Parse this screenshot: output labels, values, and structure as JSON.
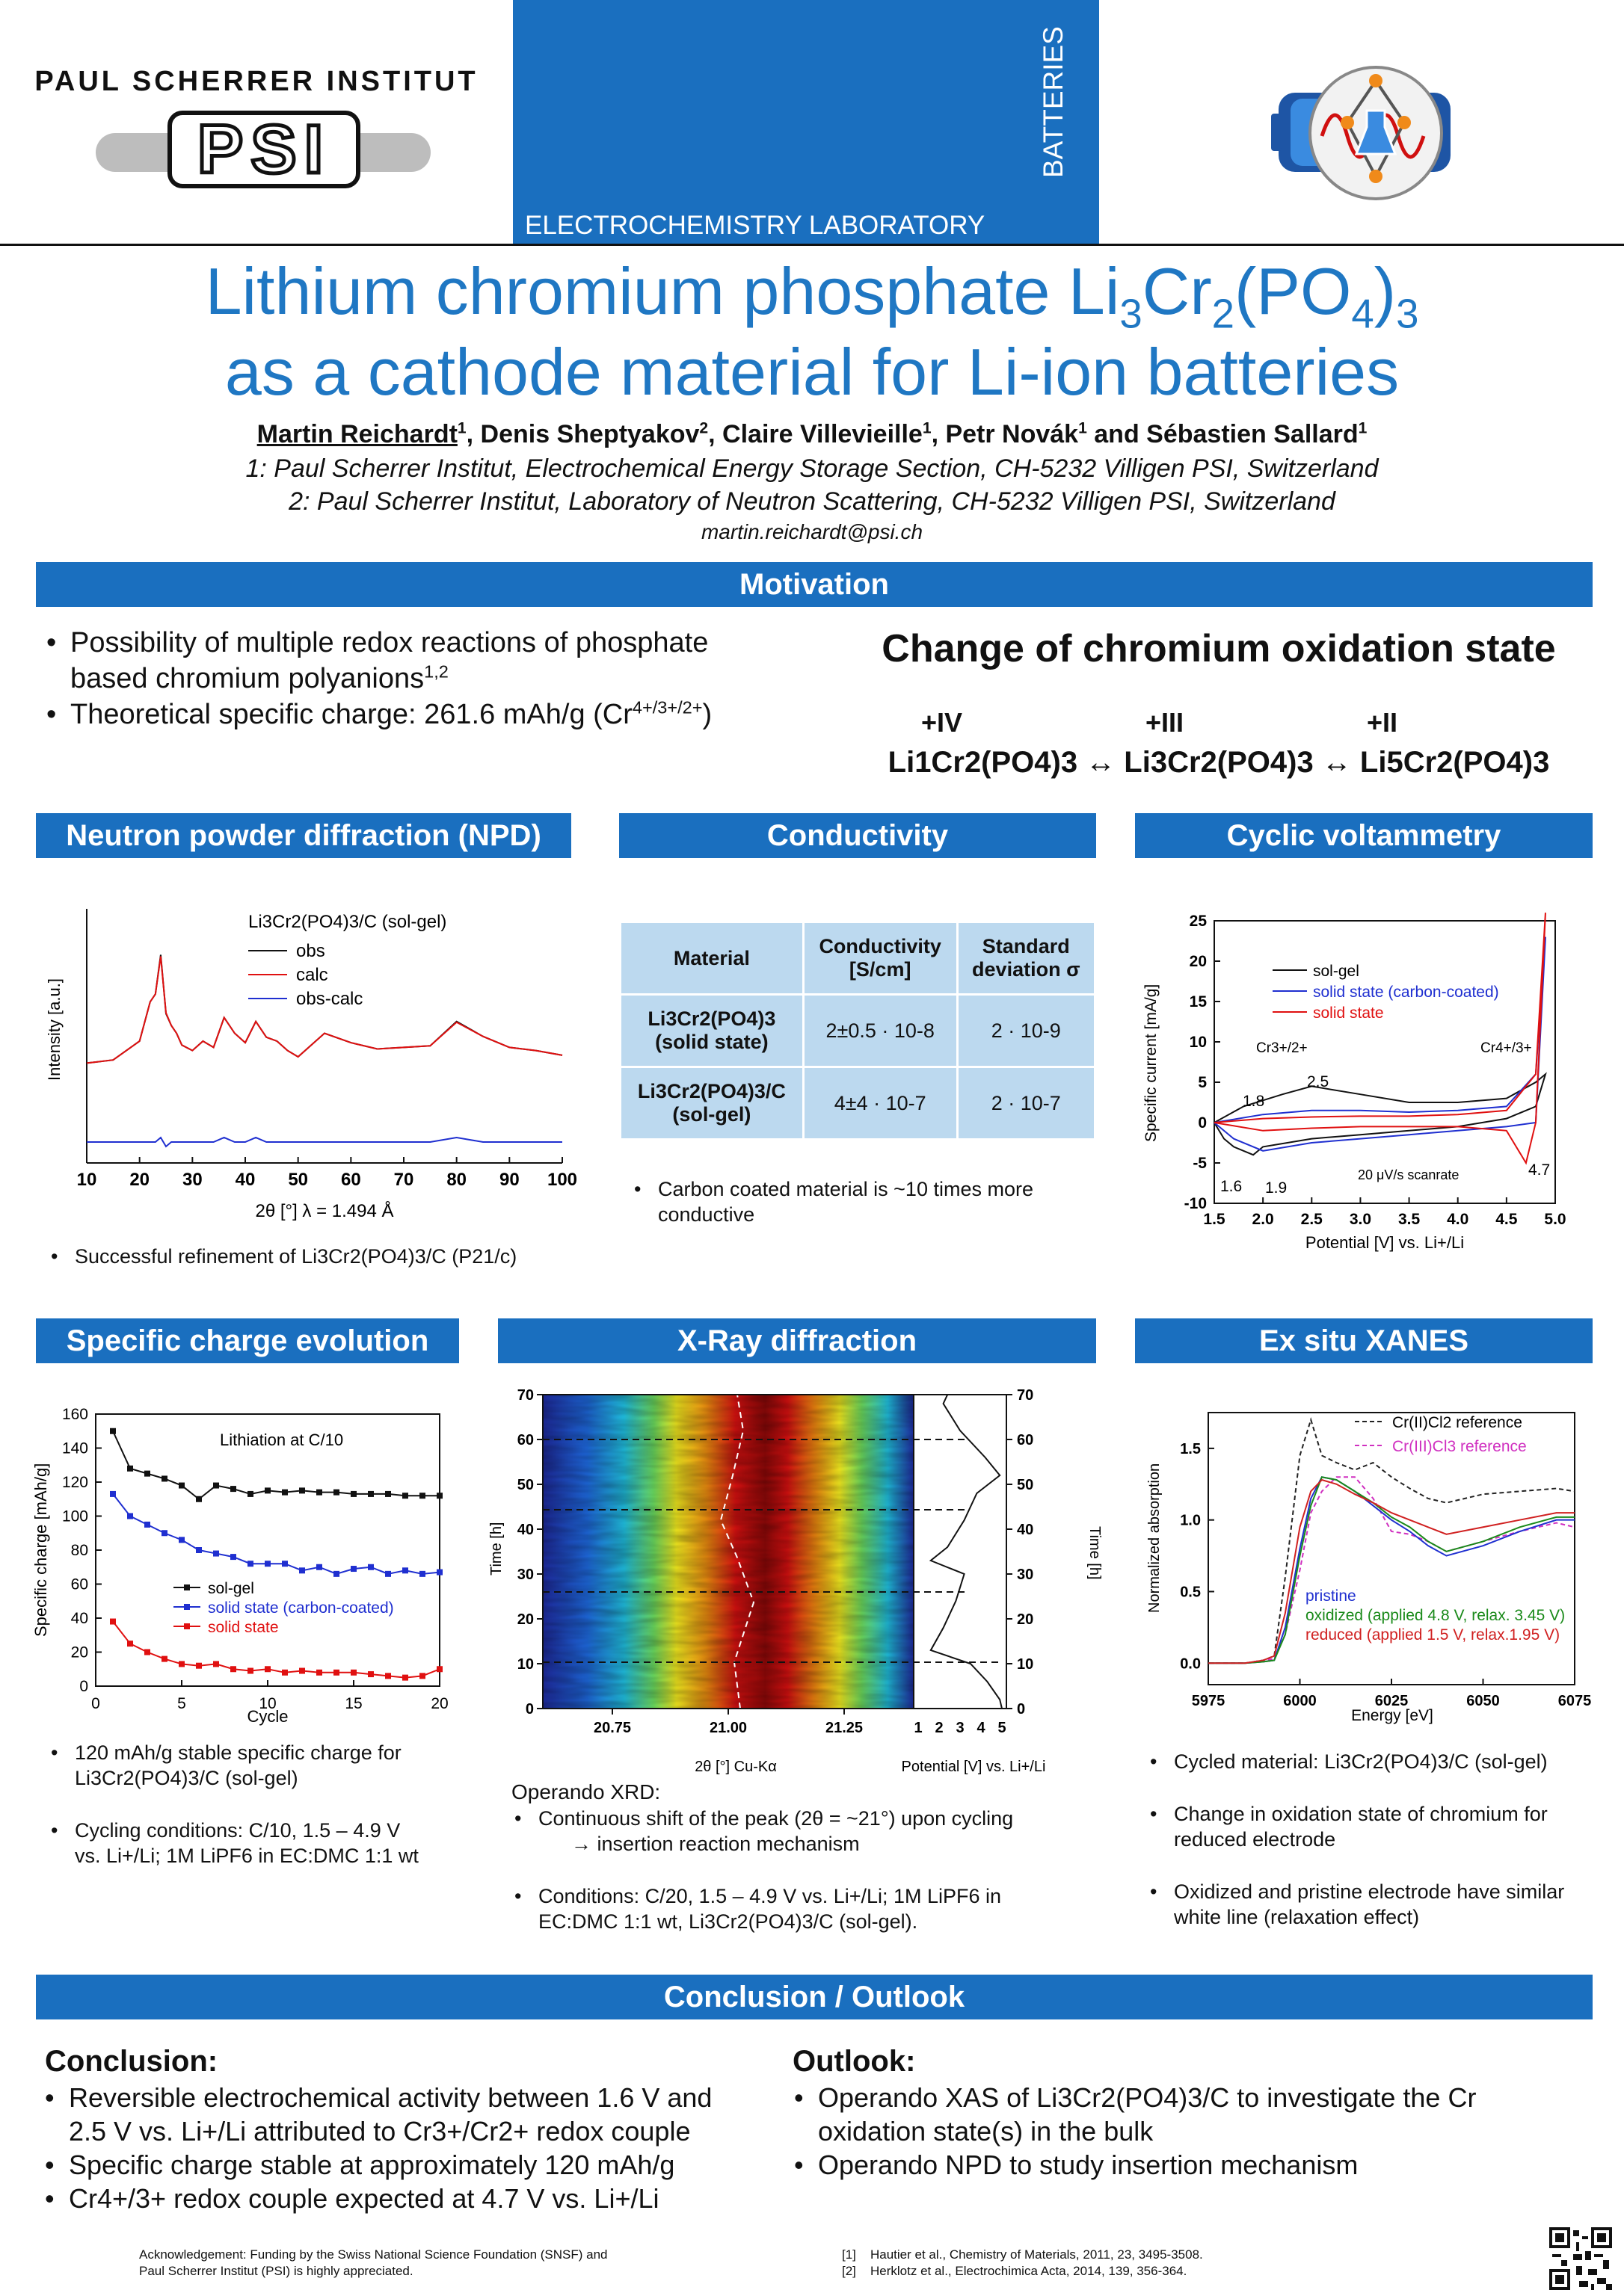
{
  "header": {
    "institute": "PAUL SCHERRER INSTITUT",
    "logo_text": "PSI",
    "lab": "ELECTROCHEMISTRY LABORATORY",
    "vertical": "BATTERIES",
    "colors": {
      "accent": "#1a6fbf",
      "title": "#1f77c3"
    }
  },
  "title": {
    "line1_pre": "Lithium chromium phosphate Li",
    "line1_s1": "3",
    "line1_cr": "Cr",
    "line1_s2": "2",
    "line1_po": "(PO",
    "line1_s3": "4",
    "line1_cl": ")",
    "line1_s4": "3",
    "line2": "as a cathode material for Li-ion batteries"
  },
  "authors": {
    "a1": "Martin Reichardt",
    "a1_sup": "1",
    "a2": ", Denis Sheptyakov",
    "a2_sup": "2",
    "a3": ", Claire Villevieille",
    "a3_sup": "1",
    "a4": ", Petr Novák",
    "a4_sup": "1",
    "a5": " and Sébastien Sallard",
    "a5_sup": "1",
    "aff1": "1: Paul Scherrer Institut, Electrochemical Energy Storage Section, CH-5232 Villigen PSI, Switzerland",
    "aff2": "2: Paul Scherrer Institut, Laboratory of Neutron Scattering, CH-5232 Villigen PSI, Switzerland",
    "email": "martin.reichardt@psi.ch"
  },
  "motivation": {
    "header": "Motivation",
    "b1a": "Possibility of multiple redox reactions of phosphate",
    "b1b": "based chromium polyanions",
    "b1_sup": "1,2",
    "b2": "Theoretical specific charge: 261.6 mAh/g (Cr",
    "b2_sup": "4+/3+/2+",
    "b2_end": ")",
    "ox_title": "Change of chromium oxidation state",
    "ox_labels": [
      "+IV",
      "+III",
      "+II"
    ],
    "ox_eq": "Li1Cr2(PO4)3 ↔ Li3Cr2(PO4)3 ↔ Li5Cr2(PO4)3"
  },
  "npd": {
    "header": "Neutron powder diffraction (NPD)",
    "legend_title": "Li3Cr2(PO4)3/C (sol-gel)",
    "legend": [
      "obs",
      "calc",
      "obs-calc"
    ],
    "ylabel": "Intensity [a.u.]",
    "xlabel": "2θ [°] λ = 1.494 Å",
    "ticks": [
      "10",
      "20",
      "30",
      "40",
      "50",
      "60",
      "70",
      "80",
      "90",
      "100"
    ],
    "bullet": "Successful refinement of Li3Cr2(PO4)3/C (P21/c)"
  },
  "conductivity": {
    "header": "Conductivity",
    "col1": "Material",
    "col2a": "Conductivity",
    "col2b": "[S/cm]",
    "col3a": "Standard",
    "col3b": "deviation σ",
    "row1a": "Li3Cr2(PO4)3",
    "row1b": "(solid state)",
    "row1_val": "2±0.5 · 10-8",
    "row1_sd": "2 · 10-9",
    "row2a": "Li3Cr2(PO4)3/C",
    "row2b": "(sol-gel)",
    "row2_val": "4±4 · 10-7",
    "row2_sd": "2 · 10-7",
    "bullet_a": "Carbon coated material is ~10 times more",
    "bullet_b": "conductive"
  },
  "cv": {
    "header": "Cyclic voltammetry",
    "legend": [
      "sol-gel",
      "solid state (carbon-coated)",
      "solid state"
    ],
    "ylabel": "Specific current [mA/g]",
    "xlabel": "Potential [V] vs. Li+/Li",
    "xticks": [
      "1.5",
      "2.0",
      "2.5",
      "3.0",
      "3.5",
      "4.0",
      "4.5",
      "5.0"
    ],
    "yticks": [
      "25",
      "20",
      "15",
      "10",
      "5",
      "0",
      "-5",
      "-10"
    ],
    "annotations": [
      "Cr3+/2+",
      "Cr4+/3+",
      "2.5",
      "1.8",
      "1.6",
      "1.9",
      "4.7",
      "20 μV/s scanrate"
    ]
  },
  "specific_charge": {
    "header": "Specific charge evolution",
    "ylabel": "Specific charge [mAh/g]",
    "xlabel": "Cycle",
    "label": "Lithiation at C/10",
    "legend": [
      "sol-gel",
      "solid state (carbon-coated)",
      "solid state"
    ],
    "xticks": [
      "0",
      "5",
      "10",
      "15",
      "20"
    ],
    "yticks": [
      "160",
      "140",
      "120",
      "100",
      "80",
      "60",
      "40",
      "20",
      "0"
    ],
    "b1a": "120 mAh/g stable specific charge for",
    "b1b": "Li3Cr2(PO4)3/C (sol-gel)",
    "b2a": "Cycling conditions: C/10, 1.5 – 4.9 V",
    "b2b": "vs. Li+/Li; 1M LiPF6 in EC:DMC 1:1 wt"
  },
  "xrd": {
    "header": "X-Ray diffraction",
    "ylabel": "Time [h]",
    "xlabel_left": "2θ [°] Cu-Kα",
    "xlabel_right": "Potential [V] vs. Li+/Li",
    "xticks": [
      "20.75",
      "21.00",
      "21.25"
    ],
    "pticks": [
      "1",
      "2",
      "3",
      "4",
      "5"
    ],
    "tticks": [
      "70",
      "60",
      "50",
      "40",
      "30",
      "20",
      "10",
      "0"
    ],
    "intro": "Operando XRD:",
    "b1a": "Continuous shift of the peak (2θ = ~21°) upon cycling",
    "b1b": "→ insertion reaction mechanism",
    "b2a": "Conditions: C/20, 1.5 – 4.9 V vs. Li+/Li; 1M LiPF6 in",
    "b2b": "EC:DMC 1:1 wt, Li3Cr2(PO4)3/C (sol-gel)."
  },
  "xanes": {
    "header": "Ex situ XANES",
    "ylabel": "Normalized absorption",
    "xlabel": "Energy [eV]",
    "xticks": [
      "5975",
      "6000",
      "6025",
      "6050",
      "6075"
    ],
    "yticks": [
      "1.5",
      "1.0",
      "0.5",
      "0.0"
    ],
    "ref1": "Cr(II)Cl2 reference",
    "ref2": "Cr(III)Cl3 reference",
    "leg1": "pristine",
    "leg2": "oxidized (applied 4.8 V, relax. 3.45 V)",
    "leg3": "reduced (applied 1.5 V, relax.1.95 V)",
    "b1": "Cycled material: Li3Cr2(PO4)3/C (sol-gel)",
    "b2a": "Change in oxidation state of chromium for",
    "b2b": "reduced electrode",
    "b3a": "Oxidized and pristine electrode have similar",
    "b3b": "white line (relaxation effect)"
  },
  "conclusion": {
    "header": "Conclusion / Outlook",
    "c_title": "Conclusion:",
    "c1a": "Reversible electrochemical activity between 1.6 V and",
    "c1b": "2.5 V vs. Li+/Li attributed to Cr3+/Cr2+ redox couple",
    "c2": "Specific charge stable at approximately 120 mAh/g",
    "c3": "Cr4+/3+ redox couple expected at 4.7 V vs. Li+/Li",
    "o_title": "Outlook:",
    "o1a": "Operando XAS of Li3Cr2(PO4)3/C to investigate the Cr",
    "o1b": "oxidation state(s) in the bulk",
    "o2": "Operando NPD to study insertion mechanism"
  },
  "footer": {
    "ack1": "Acknowledgement:  Funding by the Swiss National Science Foundation (SNSF) and",
    "ack2": "Paul Scherrer Institut (PSI) is highly appreciated.",
    "ref1_n": "[1]",
    "ref1": "Hautier et al., Chemistry of Materials, 2011, 23, 3495-3508.",
    "ref2_n": "[2]",
    "ref2": "Herklotz et al., Electrochimica Acta, 2014, 139, 356-364."
  },
  "chart_data": [
    {
      "type": "line",
      "title": "Specific charge evolution",
      "xlabel": "Cycle",
      "ylabel": "Specific charge [mAh/g]",
      "xlim": [
        0,
        20
      ],
      "ylim": [
        0,
        160
      ],
      "x": [
        1,
        2,
        3,
        4,
        5,
        6,
        7,
        8,
        9,
        10,
        11,
        12,
        13,
        14,
        15,
        16,
        17,
        18,
        19,
        20
      ],
      "series": [
        {
          "name": "sol-gel",
          "color": "#111111",
          "values": [
            150,
            128,
            125,
            122,
            118,
            110,
            118,
            116,
            113,
            115,
            114,
            115,
            114,
            114,
            113,
            113,
            113,
            112,
            112,
            112
          ]
        },
        {
          "name": "solid state (carbon-coated)",
          "color": "#1f2fd0",
          "values": [
            113,
            100,
            95,
            90,
            86,
            80,
            78,
            76,
            72,
            72,
            72,
            68,
            70,
            66,
            69,
            70,
            66,
            68,
            66,
            67
          ]
        },
        {
          "name": "solid state",
          "color": "#e01010",
          "values": [
            38,
            25,
            20,
            16,
            13,
            12,
            13,
            10,
            9,
            10,
            8,
            9,
            8,
            8,
            8,
            7,
            6,
            5,
            6,
            10
          ]
        }
      ]
    },
    {
      "type": "line",
      "title": "Neutron powder diffraction (NPD)",
      "xlabel": "2θ [°] λ = 1.494 Å",
      "ylabel": "Intensity [a.u.]",
      "xlim": [
        10,
        100
      ],
      "x": [
        10,
        15,
        20,
        22,
        23,
        24,
        25,
        26,
        27,
        28,
        30,
        32,
        34,
        36,
        38,
        40,
        42,
        44,
        46,
        48,
        50,
        55,
        60,
        65,
        70,
        75,
        80,
        85,
        90,
        95,
        100
      ],
      "series": [
        {
          "name": "obs",
          "color": "#111111",
          "values": [
            32,
            36,
            60,
            110,
            120,
            170,
            95,
            80,
            70,
            55,
            48,
            60,
            52,
            90,
            70,
            58,
            85,
            65,
            60,
            48,
            40,
            70,
            58,
            50,
            52,
            54,
            85,
            66,
            52,
            48,
            42
          ]
        },
        {
          "name": "calc",
          "color": "#e01010",
          "values": [
            32,
            36,
            60,
            110,
            120,
            168,
            96,
            80,
            70,
            55,
            48,
            60,
            52,
            90,
            70,
            58,
            85,
            65,
            60,
            48,
            40,
            70,
            58,
            50,
            52,
            54,
            84,
            66,
            52,
            48,
            42
          ]
        },
        {
          "name": "obs-calc",
          "color": "#1f2fd0",
          "values": [
            0,
            0,
            0,
            0,
            0,
            1,
            -1,
            0,
            0,
            0,
            0,
            0,
            0,
            1,
            0,
            0,
            1,
            0,
            0,
            0,
            0,
            0,
            0,
            0,
            0,
            0,
            1,
            0,
            0,
            0,
            0
          ]
        }
      ]
    },
    {
      "type": "line",
      "title": "Cyclic voltammetry",
      "xlabel": "Potential [V] vs. Li+/Li",
      "ylabel": "Specific current [mA/g]",
      "xlim": [
        1.5,
        5.0
      ],
      "ylim": [
        -10,
        25
      ],
      "series": [
        {
          "name": "sol-gel",
          "color": "#111111",
          "x": [
            1.5,
            1.8,
            2.2,
            2.5,
            3.0,
            3.5,
            4.0,
            4.5,
            4.8,
            4.9,
            4.8,
            4.5,
            4.0,
            3.5,
            3.0,
            2.5,
            2.0,
            1.9,
            1.7,
            1.6,
            1.5
          ],
          "values": [
            0,
            2,
            3.5,
            4.5,
            3.5,
            2.5,
            2.5,
            3,
            5,
            6,
            2,
            0.5,
            -0.5,
            -1,
            -1.5,
            -2,
            -3,
            -4,
            -3,
            -2,
            0
          ]
        },
        {
          "name": "solid state (carbon-coated)",
          "color": "#1f2fd0",
          "x": [
            1.5,
            2.0,
            2.5,
            3.0,
            3.5,
            4.0,
            4.5,
            4.8,
            4.9,
            4.8,
            4.5,
            4.0,
            3.5,
            3.0,
            2.5,
            2.0,
            1.7,
            1.5
          ],
          "values": [
            0,
            1,
            1.5,
            1.5,
            1.3,
            1.5,
            2,
            6,
            23,
            0,
            -0.5,
            -1,
            -1.5,
            -2,
            -2.5,
            -3.5,
            -2,
            0
          ]
        },
        {
          "name": "solid state",
          "color": "#e01010",
          "x": [
            1.5,
            2.0,
            2.5,
            3.0,
            3.5,
            4.0,
            4.5,
            4.8,
            4.9,
            4.8,
            4.7,
            4.5,
            4.0,
            3.5,
            3.0,
            2.5,
            2.0,
            1.5
          ],
          "values": [
            0,
            0.5,
            0.7,
            0.8,
            0.8,
            1,
            1.5,
            6,
            26,
            0,
            -5,
            -1,
            -0.5,
            -0.5,
            -0.5,
            -0.7,
            -1,
            0
          ]
        }
      ]
    },
    {
      "type": "line",
      "title": "Ex situ XANES",
      "xlabel": "Energy [eV]",
      "ylabel": "Normalized absorption",
      "xlim": [
        5975,
        6075
      ],
      "ylim": [
        -0.15,
        1.75
      ],
      "x": [
        5975,
        5985,
        5990,
        5993,
        5996,
        6000,
        6003,
        6006,
        6010,
        6015,
        6020,
        6025,
        6030,
        6035,
        6040,
        6050,
        6060,
        6070,
        6075
      ],
      "series": [
        {
          "name": "Cr(II)Cl2 reference",
          "color": "#222222",
          "values": [
            0,
            0,
            0.02,
            0.05,
            0.6,
            1.45,
            1.7,
            1.45,
            1.4,
            1.35,
            1.4,
            1.3,
            1.22,
            1.15,
            1.12,
            1.18,
            1.2,
            1.22,
            1.2
          ]
        },
        {
          "name": "Cr(III)Cl3 reference",
          "color": "#d030c0",
          "values": [
            0,
            0,
            0.02,
            0.03,
            0.2,
            0.65,
            1.05,
            1.2,
            1.3,
            1.3,
            1.15,
            0.92,
            0.9,
            0.85,
            0.78,
            0.85,
            0.92,
            0.98,
            0.95
          ]
        },
        {
          "name": "pristine",
          "color": "#2030d0",
          "values": [
            0,
            0,
            0.01,
            0.02,
            0.25,
            0.8,
            1.15,
            1.3,
            1.28,
            1.2,
            1.1,
            1.0,
            0.92,
            0.82,
            0.75,
            0.82,
            0.92,
            1.0,
            1.0
          ]
        },
        {
          "name": "oxidized (applied 4.8 V, relax. 3.45 V)",
          "color": "#1a8a1a",
          "values": [
            0,
            0,
            0.01,
            0.02,
            0.2,
            0.75,
            1.1,
            1.3,
            1.28,
            1.2,
            1.12,
            1.02,
            0.95,
            0.85,
            0.78,
            0.85,
            0.95,
            1.02,
            1.02
          ]
        },
        {
          "name": "reduced (applied 1.5 V, relax.1.95 V)",
          "color": "#d02020",
          "values": [
            0,
            0,
            0.02,
            0.05,
            0.35,
            0.95,
            1.2,
            1.28,
            1.25,
            1.18,
            1.12,
            1.05,
            1.0,
            0.95,
            0.9,
            0.95,
            1.0,
            1.05,
            1.05
          ]
        }
      ]
    },
    {
      "type": "heatmap",
      "title": "X-Ray diffraction",
      "xlabel": "2θ [°] Cu-Kα",
      "ylabel": "Time [h]",
      "xlim": [
        20.6,
        21.4
      ],
      "ylim": [
        0,
        70
      ],
      "potential_series": {
        "xlabel": "Potential [V] vs. Li+/Li",
        "xlim": [
          1,
          5
        ],
        "time": [
          0,
          2,
          6,
          10,
          13,
          18,
          24,
          30,
          33,
          36,
          42,
          48,
          52,
          56,
          62,
          68,
          70
        ],
        "values": [
          5,
          4.9,
          4.3,
          3.5,
          1.6,
          2.2,
          2.8,
          3.2,
          1.6,
          2.4,
          3.2,
          3.8,
          4.9,
          4.2,
          3.0,
          2.2,
          2.4
        ]
      }
    }
  ]
}
